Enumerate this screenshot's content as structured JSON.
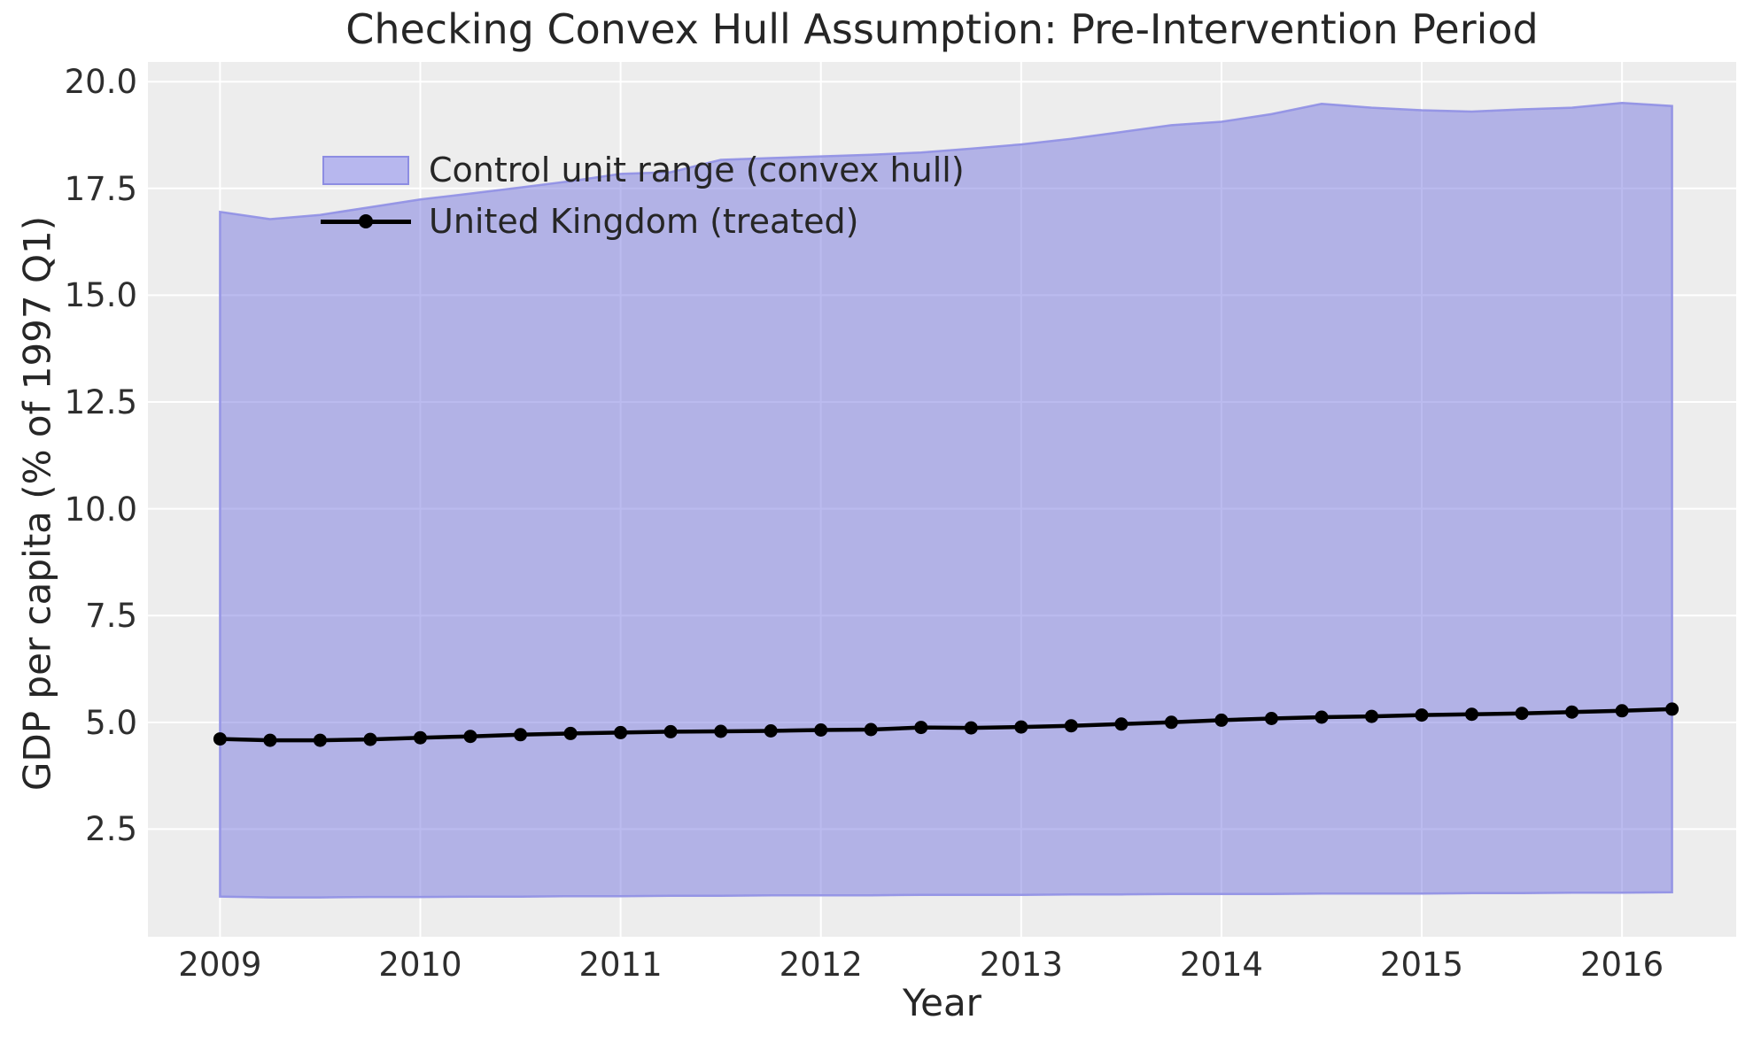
{
  "figure": {
    "title": "Checking Convex Hull Assumption: Pre-Intervention Period",
    "xlabel": "Year",
    "ylabel": "GDP per capita (% of 1997 Q1)"
  },
  "legend": {
    "items": [
      {
        "label": "Control unit range (convex hull)",
        "type": "patch"
      },
      {
        "label": "United Kingdom (treated)",
        "type": "line-marker"
      }
    ],
    "position": "upper left"
  },
  "colors": {
    "band_fill": "#7878df",
    "band_fill_opacity": 0.5,
    "band_edge": "#8f8fe4",
    "treated_line": "#000000",
    "axes_background": "#ededed",
    "grid": "#ffffff",
    "text": "#262626"
  },
  "chart_data": {
    "type": "area",
    "title": "Checking Convex Hull Assumption: Pre-Intervention Period",
    "xlabel": "Year",
    "ylabel": "GDP per capita (% of 1997 Q1)",
    "grid": true,
    "legend_position": "upper left",
    "xlim": [
      2008.64,
      2016.57
    ],
    "ylim": [
      -0.02,
      20.46
    ],
    "xticks": [
      2009,
      2010,
      2011,
      2012,
      2013,
      2014,
      2015,
      2016
    ],
    "yticks": [
      2.5,
      5.0,
      7.5,
      10.0,
      12.5,
      15.0,
      17.5,
      20.0
    ],
    "x": [
      2009.0,
      2009.25,
      2009.5,
      2009.75,
      2010.0,
      2010.25,
      2010.5,
      2010.75,
      2011.0,
      2011.25,
      2011.5,
      2011.75,
      2012.0,
      2012.25,
      2012.5,
      2012.75,
      2013.0,
      2013.25,
      2013.5,
      2013.75,
      2014.0,
      2014.25,
      2014.5,
      2014.75,
      2015.0,
      2015.25,
      2015.5,
      2015.75,
      2016.0,
      2016.25
    ],
    "series": [
      {
        "name": "Control unit range (convex hull)",
        "type": "band",
        "upper": [
          16.95,
          16.78,
          16.88,
          17.06,
          17.24,
          17.38,
          17.52,
          17.67,
          17.84,
          17.88,
          18.17,
          18.21,
          18.25,
          18.29,
          18.34,
          18.43,
          18.53,
          18.66,
          18.82,
          18.98,
          19.06,
          19.24,
          19.48,
          19.39,
          19.33,
          19.3,
          19.35,
          19.39,
          19.5,
          19.43
        ],
        "lower": [
          0.92,
          0.9,
          0.9,
          0.91,
          0.91,
          0.92,
          0.92,
          0.93,
          0.93,
          0.94,
          0.94,
          0.95,
          0.95,
          0.95,
          0.96,
          0.96,
          0.96,
          0.97,
          0.97,
          0.98,
          0.98,
          0.98,
          0.99,
          0.99,
          0.99,
          1.0,
          1.0,
          1.01,
          1.01,
          1.02
        ]
      },
      {
        "name": "United Kingdom (treated)",
        "type": "line",
        "values": [
          4.61,
          4.58,
          4.58,
          4.6,
          4.64,
          4.67,
          4.71,
          4.74,
          4.76,
          4.78,
          4.79,
          4.8,
          4.82,
          4.83,
          4.88,
          4.87,
          4.89,
          4.92,
          4.96,
          5.0,
          5.05,
          5.09,
          5.12,
          5.14,
          5.17,
          5.19,
          5.21,
          5.24,
          5.27,
          5.31
        ]
      }
    ]
  }
}
